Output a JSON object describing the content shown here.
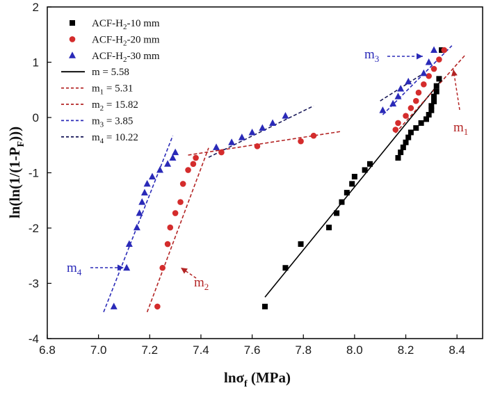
{
  "chart_data": {
    "type": "scatter",
    "xlabel": "lnσ",
    "xlabel_sub": "f",
    "xlabel_unit": " (MPa)",
    "ylabel_parts": [
      "ln(ln(1/(1-P",
      "F",
      ")))"
    ],
    "xlim": [
      6.8,
      8.5
    ],
    "ylim": [
      -4,
      2
    ],
    "x_ticks": [
      6.8,
      7.0,
      7.2,
      7.4,
      7.6,
      7.8,
      8.0,
      8.2,
      8.4
    ],
    "y_ticks": [
      -4,
      -3,
      -2,
      -1,
      0,
      1,
      2
    ],
    "x_tick_labels": [
      "6.8",
      "7.0",
      "7.2",
      "7.4",
      "7.6",
      "7.8",
      "8.0",
      "8.2",
      "8.4"
    ],
    "y_tick_labels": [
      "-4",
      "-3",
      "-2",
      "-1",
      "0",
      "1",
      "2"
    ],
    "grid": false,
    "legend_position": "top-left",
    "series": [
      {
        "name": "ACF-H",
        "name_sub": "2",
        "name_suffix": "-10 mm",
        "marker": "square",
        "color": "#000000",
        "x": [
          7.65,
          7.73,
          7.79,
          7.9,
          7.93,
          7.95,
          7.97,
          7.99,
          8.0,
          8.04,
          8.06,
          8.17,
          8.18,
          8.19,
          8.2,
          8.21,
          8.22,
          8.24,
          8.26,
          8.28,
          8.29,
          8.3,
          8.3,
          8.31,
          8.31,
          8.32,
          8.32,
          8.33,
          8.34
        ],
        "y": [
          -3.42,
          -2.72,
          -2.29,
          -1.99,
          -1.73,
          -1.53,
          -1.36,
          -1.2,
          -1.07,
          -0.95,
          -0.84,
          -0.73,
          -0.63,
          -0.54,
          -0.45,
          -0.36,
          -0.27,
          -0.19,
          -0.1,
          -0.03,
          0.05,
          0.13,
          0.21,
          0.29,
          0.38,
          0.47,
          0.57,
          0.7,
          1.22
        ]
      },
      {
        "name": "ACF-H",
        "name_sub": "2",
        "name_suffix": "-20 mm",
        "marker": "circle",
        "color": "#d42c2c",
        "x": [
          7.23,
          7.25,
          7.27,
          7.28,
          7.3,
          7.32,
          7.33,
          7.35,
          7.37,
          7.38,
          7.48,
          7.62,
          7.79,
          7.84,
          8.16,
          8.17,
          8.2,
          8.22,
          8.24,
          8.25,
          8.27,
          8.29,
          8.31,
          8.33,
          8.35
        ],
        "y": [
          -3.42,
          -2.72,
          -2.29,
          -1.99,
          -1.73,
          -1.53,
          -1.2,
          -0.95,
          -0.84,
          -0.73,
          -0.63,
          -0.52,
          -0.43,
          -0.33,
          -0.22,
          -0.1,
          0.03,
          0.17,
          0.3,
          0.45,
          0.6,
          0.75,
          0.88,
          1.05,
          1.22
        ]
      },
      {
        "name": "ACF-H",
        "name_sub": "2",
        "name_suffix": "-30 mm",
        "marker": "triangle",
        "color": "#2a2ab8",
        "x": [
          7.06,
          7.11,
          7.12,
          7.15,
          7.16,
          7.17,
          7.18,
          7.19,
          7.21,
          7.24,
          7.27,
          7.29,
          7.3,
          7.46,
          7.52,
          7.56,
          7.6,
          7.64,
          7.68,
          7.73,
          8.11,
          8.15,
          8.17,
          8.18,
          8.21,
          8.27,
          8.29,
          8.31
        ],
        "y": [
          -3.42,
          -2.72,
          -2.29,
          -1.99,
          -1.73,
          -1.53,
          -1.36,
          -1.2,
          -1.07,
          -0.95,
          -0.84,
          -0.73,
          -0.63,
          -0.54,
          -0.45,
          -0.36,
          -0.27,
          -0.19,
          -0.1,
          0.03,
          0.13,
          0.25,
          0.38,
          0.52,
          0.65,
          0.8,
          1.0,
          1.22
        ]
      }
    ],
    "fits": [
      {
        "label": "m = 5.58",
        "color": "#000000",
        "dash": false,
        "x": [
          7.65,
          8.34
        ],
        "y": [
          -3.25,
          0.68
        ]
      },
      {
        "label_main": "m",
        "label_sub": "1",
        "label_value": " = 5.31",
        "color": "#b32424",
        "dash": true,
        "x": [
          7.35,
          7.95
        ],
        "y": [
          -0.68,
          -0.25
        ]
      },
      {
        "label_main": "m",
        "label_sub": "2",
        "label_value": " = 15.82",
        "color": "#b32424",
        "dash": true,
        "x": [
          7.19,
          7.43
        ],
        "y": [
          -3.52,
          -0.55
        ]
      },
      {
        "label_main": "m",
        "label_sub": "3",
        "label_value": " = 3.85",
        "color": "#2a2ab8",
        "dash": true,
        "x": [
          7.02,
          7.29
        ],
        "y": [
          -3.52,
          -0.33
        ]
      },
      {
        "label_main": "m",
        "label_sub": "4",
        "label_value": " = 10.22",
        "color": "#1a1a5a",
        "dash": true,
        "x": [
          7.43,
          7.84
        ],
        "y": [
          -0.72,
          0.21
        ]
      },
      {
        "color": "#b32424",
        "dash": true,
        "x": [
          8.16,
          8.43
        ],
        "y": [
          -0.28,
          1.12
        ]
      },
      {
        "color": "#2a2ab8",
        "dash": true,
        "x": [
          8.11,
          8.38
        ],
        "y": [
          0.05,
          1.3
        ]
      },
      {
        "color": "#1a1a5a",
        "dash": true,
        "x": [
          8.1,
          8.27
        ],
        "y": [
          0.3,
          0.8
        ]
      }
    ],
    "annotations": [
      {
        "text": "m",
        "sub": "4",
        "color": "#2a2ab8"
      },
      {
        "text": "m",
        "sub": "2",
        "color": "#b32424"
      },
      {
        "text": "m",
        "sub": "3",
        "color": "#2a2ab8"
      },
      {
        "text": "m",
        "sub": "1",
        "color": "#b32424"
      }
    ]
  }
}
